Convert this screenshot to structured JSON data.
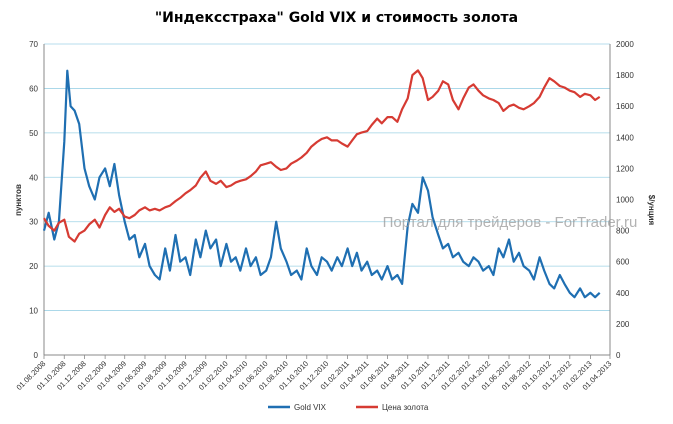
{
  "chart_data": {
    "type": "line",
    "title": "\"Индексстраха\" Gold VIX и стоимость золота",
    "ylabel_left": "пунктов",
    "ylabel_right": "$/унция",
    "ylim_left": [
      0,
      70
    ],
    "ylim_right": [
      0,
      2000
    ],
    "yticks_left": [
      "0",
      "10",
      "20",
      "30",
      "40",
      "50",
      "60",
      "70"
    ],
    "yticks_right": [
      "0",
      "200",
      "400",
      "600",
      "800",
      "1000",
      "1200",
      "1400",
      "1600",
      "1800",
      "2000"
    ],
    "grid": true,
    "legend_position": "bottom",
    "watermark": "Портал для трейдеров - ForTrader.ru",
    "x_categories": [
      "01.08.2008",
      "01.10.2008",
      "01.12.2008",
      "01.02.2009",
      "01.04.2009",
      "01.06.2009",
      "01.08.2009",
      "01.10.2009",
      "01.12.2009",
      "01.02.2010",
      "01.04.2010",
      "01.06.2010",
      "01.08.2010",
      "01.10.2010",
      "01.12.2010",
      "01.02.2011",
      "01.04.2011",
      "01.06.2011",
      "01.08.2011",
      "01.10.2011",
      "01.12.2011",
      "01.02.2012",
      "01.04.2012",
      "01.06.2012",
      "01.08.2012",
      "01.10.2012",
      "01.12.2012",
      "01.02.2013",
      "01.04.2013"
    ],
    "series": [
      {
        "name": "Gold VIX",
        "axis": "left",
        "color": "#1f6fb2",
        "x": [
          "01.08.2008",
          "15.08.2008",
          "01.09.2008",
          "15.09.2008",
          "01.10.2008",
          "10.10.2008",
          "20.10.2008",
          "01.11.2008",
          "15.11.2008",
          "01.12.2008",
          "15.12.2008",
          "01.01.2009",
          "15.01.2009",
          "01.02.2009",
          "15.02.2009",
          "01.03.2009",
          "15.03.2009",
          "01.04.2009",
          "15.04.2009",
          "01.05.2009",
          "15.05.2009",
          "01.06.2009",
          "15.06.2009",
          "01.07.2009",
          "15.07.2009",
          "01.08.2009",
          "15.08.2009",
          "01.09.2009",
          "15.09.2009",
          "01.10.2009",
          "15.10.2009",
          "01.11.2009",
          "15.11.2009",
          "01.12.2009",
          "15.12.2009",
          "01.01.2010",
          "15.01.2010",
          "01.02.2010",
          "15.02.2010",
          "01.03.2010",
          "15.03.2010",
          "01.04.2010",
          "15.04.2010",
          "01.05.2010",
          "15.05.2010",
          "01.06.2010",
          "15.06.2010",
          "01.07.2010",
          "15.07.2010",
          "01.08.2010",
          "15.08.2010",
          "01.09.2010",
          "15.09.2010",
          "01.10.2010",
          "15.10.2010",
          "01.11.2010",
          "15.11.2010",
          "01.12.2010",
          "15.12.2010",
          "01.01.2011",
          "15.01.2011",
          "01.02.2011",
          "15.02.2011",
          "01.03.2011",
          "15.03.2011",
          "01.04.2011",
          "15.04.2011",
          "01.05.2011",
          "15.05.2011",
          "01.06.2011",
          "15.06.2011",
          "01.07.2011",
          "15.07.2011",
          "01.08.2011",
          "15.08.2011",
          "01.09.2011",
          "15.09.2011",
          "01.10.2011",
          "15.10.2011",
          "01.11.2011",
          "15.11.2011",
          "01.12.2011",
          "15.12.2011",
          "01.01.2012",
          "15.01.2012",
          "01.02.2012",
          "15.02.2012",
          "01.03.2012",
          "15.03.2012",
          "01.04.2012",
          "15.04.2012",
          "01.05.2012",
          "15.05.2012",
          "01.06.2012",
          "15.06.2012",
          "01.07.2012",
          "15.07.2012",
          "01.08.2012",
          "15.08.2012",
          "01.09.2012",
          "15.09.2012",
          "01.10.2012",
          "15.10.2012",
          "01.11.2012",
          "15.11.2012",
          "01.12.2012",
          "15.12.2012",
          "01.01.2013",
          "15.01.2013",
          "01.02.2013",
          "15.02.2013",
          "01.03.2013"
        ],
        "values": [
          28,
          32,
          26,
          30,
          48,
          64,
          56,
          55,
          52,
          42,
          38,
          35,
          40,
          42,
          38,
          43,
          36,
          30,
          26,
          27,
          22,
          25,
          20,
          18,
          17,
          24,
          19,
          27,
          21,
          22,
          18,
          26,
          22,
          28,
          24,
          26,
          20,
          25,
          21,
          22,
          19,
          24,
          20,
          22,
          18,
          19,
          22,
          30,
          24,
          21,
          18,
          19,
          17,
          24,
          20,
          18,
          22,
          21,
          19,
          22,
          20,
          24,
          20,
          23,
          19,
          21,
          18,
          19,
          17,
          20,
          17,
          18,
          16,
          29,
          34,
          32,
          40,
          37,
          31,
          27,
          24,
          25,
          22,
          23,
          21,
          20,
          22,
          21,
          19,
          20,
          18,
          24,
          22,
          26,
          21,
          23,
          20,
          19,
          17,
          22,
          19,
          16,
          15,
          18,
          16,
          14,
          13,
          15,
          13,
          14,
          13,
          14
        ]
      },
      {
        "name": "Цена золота",
        "axis": "right",
        "color": "#d63b33",
        "x": [
          "01.08.2008",
          "15.08.2008",
          "01.09.2008",
          "15.09.2008",
          "01.10.2008",
          "15.10.2008",
          "01.11.2008",
          "15.11.2008",
          "01.12.2008",
          "15.12.2008",
          "01.01.2009",
          "15.01.2009",
          "01.02.2009",
          "15.02.2009",
          "01.03.2009",
          "15.03.2009",
          "01.04.2009",
          "15.04.2009",
          "01.05.2009",
          "15.05.2009",
          "01.06.2009",
          "15.06.2009",
          "01.07.2009",
          "15.07.2009",
          "01.08.2009",
          "15.08.2009",
          "01.09.2009",
          "15.09.2009",
          "01.10.2009",
          "15.10.2009",
          "01.11.2009",
          "15.11.2009",
          "01.12.2009",
          "15.12.2009",
          "01.01.2010",
          "15.01.2010",
          "01.02.2010",
          "15.02.2010",
          "01.03.2010",
          "15.03.2010",
          "01.04.2010",
          "15.04.2010",
          "01.05.2010",
          "15.05.2010",
          "01.06.2010",
          "15.06.2010",
          "01.07.2010",
          "15.07.2010",
          "01.08.2010",
          "15.08.2010",
          "01.09.2010",
          "15.09.2010",
          "01.10.2010",
          "15.10.2010",
          "01.11.2010",
          "15.11.2010",
          "01.12.2010",
          "15.12.2010",
          "01.01.2011",
          "15.01.2011",
          "01.02.2011",
          "15.02.2011",
          "01.03.2011",
          "15.03.2011",
          "01.04.2011",
          "15.04.2011",
          "01.05.2011",
          "15.05.2011",
          "01.06.2011",
          "15.06.2011",
          "01.07.2011",
          "15.07.2011",
          "01.08.2011",
          "15.08.2011",
          "01.09.2011",
          "15.09.2011",
          "01.10.2011",
          "15.10.2011",
          "01.11.2011",
          "15.11.2011",
          "01.12.2011",
          "15.12.2011",
          "01.01.2012",
          "15.01.2012",
          "01.02.2012",
          "15.02.2012",
          "01.03.2012",
          "15.03.2012",
          "01.04.2012",
          "15.04.2012",
          "01.05.2012",
          "15.05.2012",
          "01.06.2012",
          "15.06.2012",
          "01.07.2012",
          "15.07.2012",
          "01.08.2012",
          "15.08.2012",
          "01.09.2012",
          "15.09.2012",
          "01.10.2012",
          "15.10.2012",
          "01.11.2012",
          "15.11.2012",
          "01.12.2012",
          "15.12.2012",
          "01.01.2013",
          "15.01.2013",
          "01.02.2013",
          "15.02.2013",
          "01.03.2013"
        ],
        "values": [
          880,
          830,
          800,
          850,
          870,
          760,
          730,
          780,
          800,
          840,
          870,
          820,
          900,
          950,
          920,
          940,
          890,
          880,
          900,
          930,
          950,
          930,
          940,
          930,
          950,
          960,
          990,
          1010,
          1040,
          1060,
          1090,
          1140,
          1180,
          1120,
          1100,
          1120,
          1080,
          1090,
          1110,
          1120,
          1130,
          1150,
          1180,
          1220,
          1230,
          1240,
          1210,
          1190,
          1200,
          1230,
          1250,
          1270,
          1300,
          1340,
          1370,
          1390,
          1400,
          1380,
          1380,
          1360,
          1340,
          1380,
          1420,
          1430,
          1440,
          1480,
          1520,
          1490,
          1530,
          1530,
          1500,
          1580,
          1650,
          1800,
          1830,
          1780,
          1640,
          1660,
          1700,
          1760,
          1740,
          1640,
          1580,
          1650,
          1720,
          1740,
          1700,
          1670,
          1650,
          1640,
          1620,
          1570,
          1600,
          1610,
          1590,
          1580,
          1600,
          1620,
          1660,
          1720,
          1780,
          1760,
          1730,
          1720,
          1700,
          1690,
          1660,
          1680,
          1670,
          1640,
          1660
        ]
      }
    ]
  }
}
